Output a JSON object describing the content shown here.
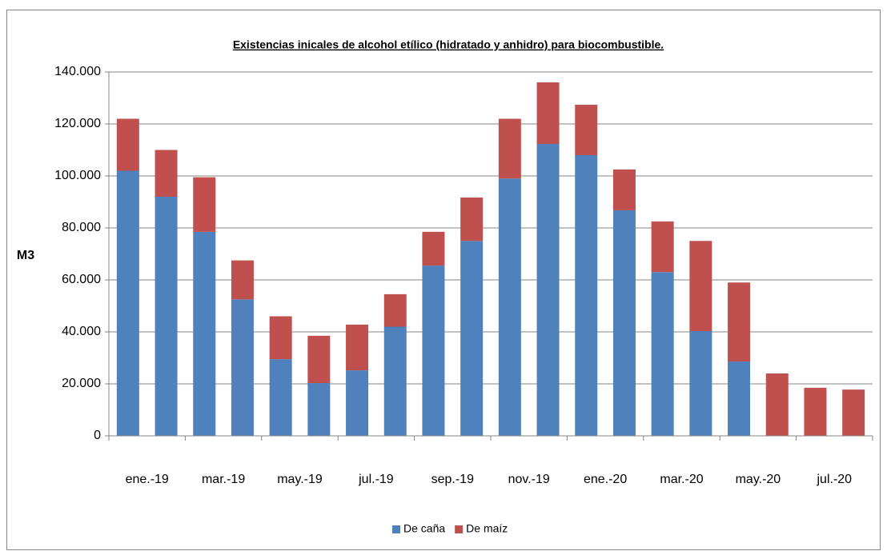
{
  "chart_data": {
    "type": "stacked-bar",
    "title": "Existencias inicales de alcohol etílico (hidratado y anhidro) para biocombustible.",
    "y_label": "M3",
    "categories": [
      "ene.-19",
      null,
      "mar.-19",
      null,
      "may.-19",
      null,
      "jul.-19",
      null,
      "sep.-19",
      null,
      "nov.-19",
      null,
      "ene.-20",
      null,
      "mar.-20",
      null,
      "may.-20",
      null,
      "jul.-20",
      null
    ],
    "series": [
      {
        "name": "De caña",
        "color": "#4f81bd",
        "values": [
          102000,
          92000,
          78500,
          52500,
          29500,
          20300,
          25200,
          42000,
          65500,
          75000,
          99000,
          112300,
          108000,
          86800,
          63000,
          40300,
          28600,
          0,
          0,
          0
        ]
      },
      {
        "name": "De maíz",
        "color": "#c0504d",
        "values": [
          20000,
          18000,
          21000,
          15000,
          16500,
          18200,
          17600,
          12500,
          13000,
          16700,
          23000,
          23700,
          19400,
          15700,
          19500,
          34700,
          30400,
          24000,
          18500,
          17800
        ]
      }
    ],
    "ylim": [
      0,
      140000
    ],
    "yticks": [
      0,
      {
        "value": 20000,
        "label": "20.000"
      },
      {
        "value": 40000,
        "label": "40.000"
      },
      {
        "value": 60000,
        "label": "60.000"
      },
      {
        "value": 80000,
        "label": "80.000"
      },
      {
        "value": 100000,
        "label": "100.000"
      },
      {
        "value": 120000,
        "label": "120.000"
      },
      {
        "value": 140000,
        "label": "140.000"
      }
    ],
    "grid": true,
    "legend": "bottom"
  }
}
